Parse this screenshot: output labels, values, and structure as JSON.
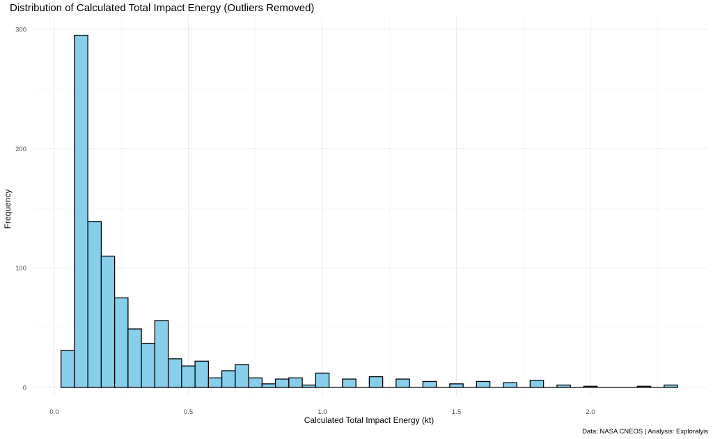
{
  "chart_data": {
    "type": "bar",
    "title": "Distribution of Calculated Total Impact Energy (Outliers Removed)",
    "xlabel": "Calculated Total Impact Energy (kt)",
    "ylabel": "Frequency",
    "caption": "Data: NASA CNEOS | Analysis: Exploralyis",
    "xlim": [
      -0.07,
      2.38
    ],
    "ylim": [
      0,
      300
    ],
    "grid": true,
    "x_ticks": [
      0.0,
      0.5,
      1.0,
      1.5,
      2.0
    ],
    "x_tick_labels": [
      "0.0",
      "0.5",
      "1.0",
      "1.5",
      "2.0"
    ],
    "y_ticks": [
      0,
      100,
      200,
      300
    ],
    "y_tick_labels": [
      "0",
      "100",
      "200",
      "300"
    ],
    "bin_width": 0.05,
    "bin_centers": [
      0.05,
      0.1,
      0.15,
      0.2,
      0.25,
      0.3,
      0.35,
      0.4,
      0.45,
      0.5,
      0.55,
      0.6,
      0.65,
      0.7,
      0.75,
      0.8,
      0.85,
      0.9,
      0.95,
      1.0,
      1.05,
      1.1,
      1.15,
      1.2,
      1.25,
      1.3,
      1.35,
      1.4,
      1.45,
      1.5,
      1.55,
      1.6,
      1.65,
      1.7,
      1.75,
      1.8,
      1.85,
      1.9,
      1.95,
      2.0,
      2.05,
      2.1,
      2.15,
      2.2,
      2.25,
      2.3
    ],
    "values": [
      31,
      295,
      139,
      110,
      75,
      49,
      37,
      56,
      24,
      18,
      22,
      8,
      14,
      19,
      8,
      3,
      7,
      8,
      2,
      12,
      0,
      7,
      0,
      9,
      0,
      7,
      0,
      5,
      0,
      3,
      0,
      5,
      0,
      4,
      0,
      6,
      0,
      2,
      0,
      1,
      0,
      0,
      0,
      1,
      0,
      2
    ],
    "colors": {
      "bar_fill": "#87ceeb",
      "bar_stroke": "#000000"
    }
  }
}
